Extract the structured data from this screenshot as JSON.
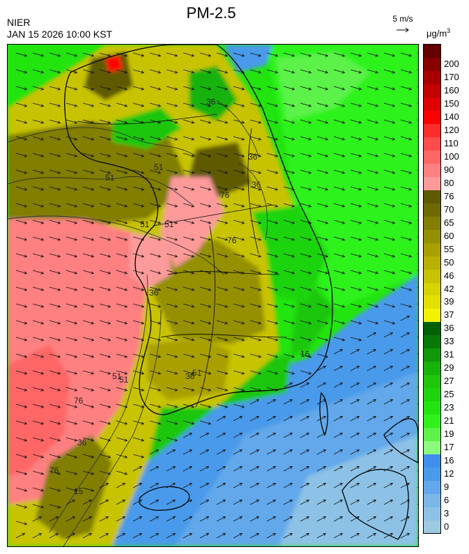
{
  "header": {
    "title": "PM-2.5",
    "agency": "NIER",
    "datetime": "JAN 15 2026 10:00 KST",
    "wind_scale": "5 m/s",
    "unit": "μg/m",
    "unit_sup": "3"
  },
  "map": {
    "contour_labels": [
      "36",
      "36",
      "51",
      "51",
      "76",
      "36",
      "51",
      "51",
      "76",
      "36",
      "51",
      "76",
      "36",
      "51",
      "16",
      "36",
      "51",
      "76",
      "15"
    ],
    "wind_flow": "west-north-west over the Yellow Sea and peninsula, south-west over the East China Sea"
  },
  "colorbar": {
    "bands": [
      {
        "label": "0",
        "color": "#9ecae1"
      },
      {
        "label": "3",
        "color": "#8dc2e6"
      },
      {
        "label": "6",
        "color": "#7bb8e8"
      },
      {
        "label": "9",
        "color": "#62a8ea"
      },
      {
        "label": "12",
        "color": "#4a9aea"
      },
      {
        "label": "16",
        "color": "#3f8fef"
      },
      {
        "label": "17",
        "color": "#8cfc7c"
      },
      {
        "label": "19",
        "color": "#5cf24a"
      },
      {
        "label": "21",
        "color": "#2ff21a"
      },
      {
        "label": "23",
        "color": "#22e40f"
      },
      {
        "label": "25",
        "color": "#1fd40c"
      },
      {
        "label": "27",
        "color": "#1fc60a"
      },
      {
        "label": "29",
        "color": "#17b20a"
      },
      {
        "label": "31",
        "color": "#0f9808"
      },
      {
        "label": "33",
        "color": "#067a05"
      },
      {
        "label": "36",
        "color": "#006100"
      },
      {
        "label": "37",
        "color": "#f2f200"
      },
      {
        "label": "39",
        "color": "#e3e000"
      },
      {
        "label": "42",
        "color": "#d6d400"
      },
      {
        "label": "46",
        "color": "#c8c300"
      },
      {
        "label": "50",
        "color": "#bab000"
      },
      {
        "label": "55",
        "color": "#a9a000"
      },
      {
        "label": "60",
        "color": "#959000"
      },
      {
        "label": "65",
        "color": "#817e00"
      },
      {
        "label": "70",
        "color": "#6f6a00"
      },
      {
        "label": "76",
        "color": "#5e5a00"
      },
      {
        "label": "80",
        "color": "#ff9a9a"
      },
      {
        "label": "90",
        "color": "#ff8080"
      },
      {
        "label": "100",
        "color": "#ff6666"
      },
      {
        "label": "110",
        "color": "#ff4b4b"
      },
      {
        "label": "120",
        "color": "#ff2c2c"
      },
      {
        "label": "140",
        "color": "#ff0000"
      },
      {
        "label": "150",
        "color": "#e00000"
      },
      {
        "label": "160",
        "color": "#c40000"
      },
      {
        "label": "170",
        "color": "#a80000"
      },
      {
        "label": "200",
        "color": "#880000"
      },
      {
        "label": "",
        "color": "#660000"
      }
    ]
  }
}
